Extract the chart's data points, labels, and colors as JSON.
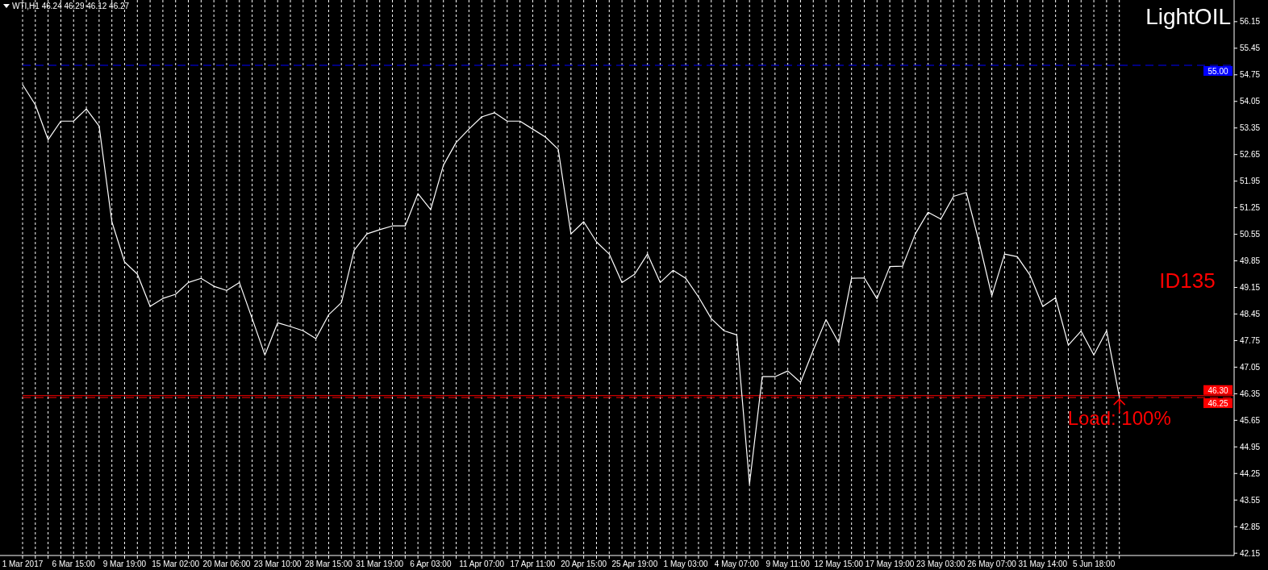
{
  "chart_data": {
    "type": "line",
    "title": "LightOIL",
    "subtitle": "WTI,H1  46.24 46.29 46.12 46.27",
    "annotations": [
      "ID135",
      "Load: 100%"
    ],
    "grid": "x",
    "marker": "none",
    "line_style": "solid",
    "ylim": [
      42.09,
      56.72
    ],
    "yticks": [
      42.15,
      42.85,
      43.55,
      44.25,
      44.95,
      45.65,
      46.35,
      47.05,
      47.75,
      48.45,
      49.15,
      49.85,
      50.55,
      51.25,
      51.95,
      52.65,
      53.35,
      54.05,
      54.75,
      55.45,
      56.15
    ],
    "categories": [
      "1 Mar 2017",
      null,
      null,
      null,
      "6 Mar 15:00",
      null,
      null,
      null,
      "9 Mar 19:00",
      null,
      null,
      null,
      "15 Mar 02:00",
      null,
      null,
      null,
      "20 Mar 06:00",
      null,
      null,
      null,
      "23 Mar 10:00",
      null,
      null,
      null,
      "28 Mar 15:00",
      null,
      null,
      null,
      "31 Mar 19:00",
      null,
      null,
      null,
      "6 Apr 03:00",
      null,
      null,
      null,
      "11 Apr 07:00",
      null,
      null,
      null,
      "17 Apr 11:00",
      null,
      null,
      null,
      "20 Apr 15:00",
      null,
      null,
      null,
      "25 Apr 19:00",
      null,
      null,
      null,
      "1 May 03:00",
      null,
      null,
      null,
      "4 May 07:00",
      null,
      null,
      null,
      "9 May 11:00",
      null,
      null,
      null,
      "12 May 15:00",
      null,
      null,
      null,
      "17 May 19:00",
      null,
      null,
      null,
      "23 May 03:00",
      null,
      null,
      null,
      "26 May 07:00",
      null,
      null,
      null,
      "31 May 14:00",
      null,
      null,
      null,
      "5 Jun 18:00",
      null,
      null
    ],
    "ref_lines": [
      {
        "axis": "y",
        "value": 55.0,
        "label": "55.00",
        "color": "#0000ff",
        "line_style": "dashed"
      },
      {
        "axis": "y",
        "value": 46.3,
        "label": "46.30",
        "color": "#ff0000",
        "line_style": "solid"
      },
      {
        "axis": "y",
        "value": 46.25,
        "label": "46.25",
        "color": "#ff0000",
        "line_style": "dashed"
      }
    ],
    "series": [
      {
        "color": "#ffffff",
        "values": [
          54.49,
          53.96,
          53.04,
          53.53,
          53.53,
          53.85,
          53.4,
          50.88,
          49.82,
          49.5,
          48.65,
          48.86,
          48.97,
          49.28,
          49.39,
          49.18,
          49.07,
          49.28,
          48.33,
          47.37,
          48.22,
          48.12,
          48.01,
          47.8,
          48.43,
          48.75,
          50.13,
          50.56,
          50.67,
          50.77,
          50.77,
          51.62,
          51.2,
          52.37,
          52.97,
          53.32,
          53.64,
          53.75,
          53.53,
          53.53,
          53.32,
          53.11,
          52.79,
          50.56,
          50.88,
          50.35,
          50.03,
          49.28,
          49.5,
          50.03,
          49.28,
          49.6,
          49.39,
          48.9,
          48.33,
          48.01,
          47.9,
          43.97,
          46.8,
          46.8,
          46.95,
          46.65,
          47.5,
          48.3,
          47.69,
          49.39,
          49.4,
          48.85,
          49.7,
          49.71,
          50.56,
          51.13,
          50.95,
          51.55,
          51.65,
          50.35,
          48.93,
          50.03,
          49.96,
          49.47,
          48.65,
          48.88,
          47.63,
          48.0,
          47.37,
          48.01,
          46.27
        ]
      }
    ]
  }
}
